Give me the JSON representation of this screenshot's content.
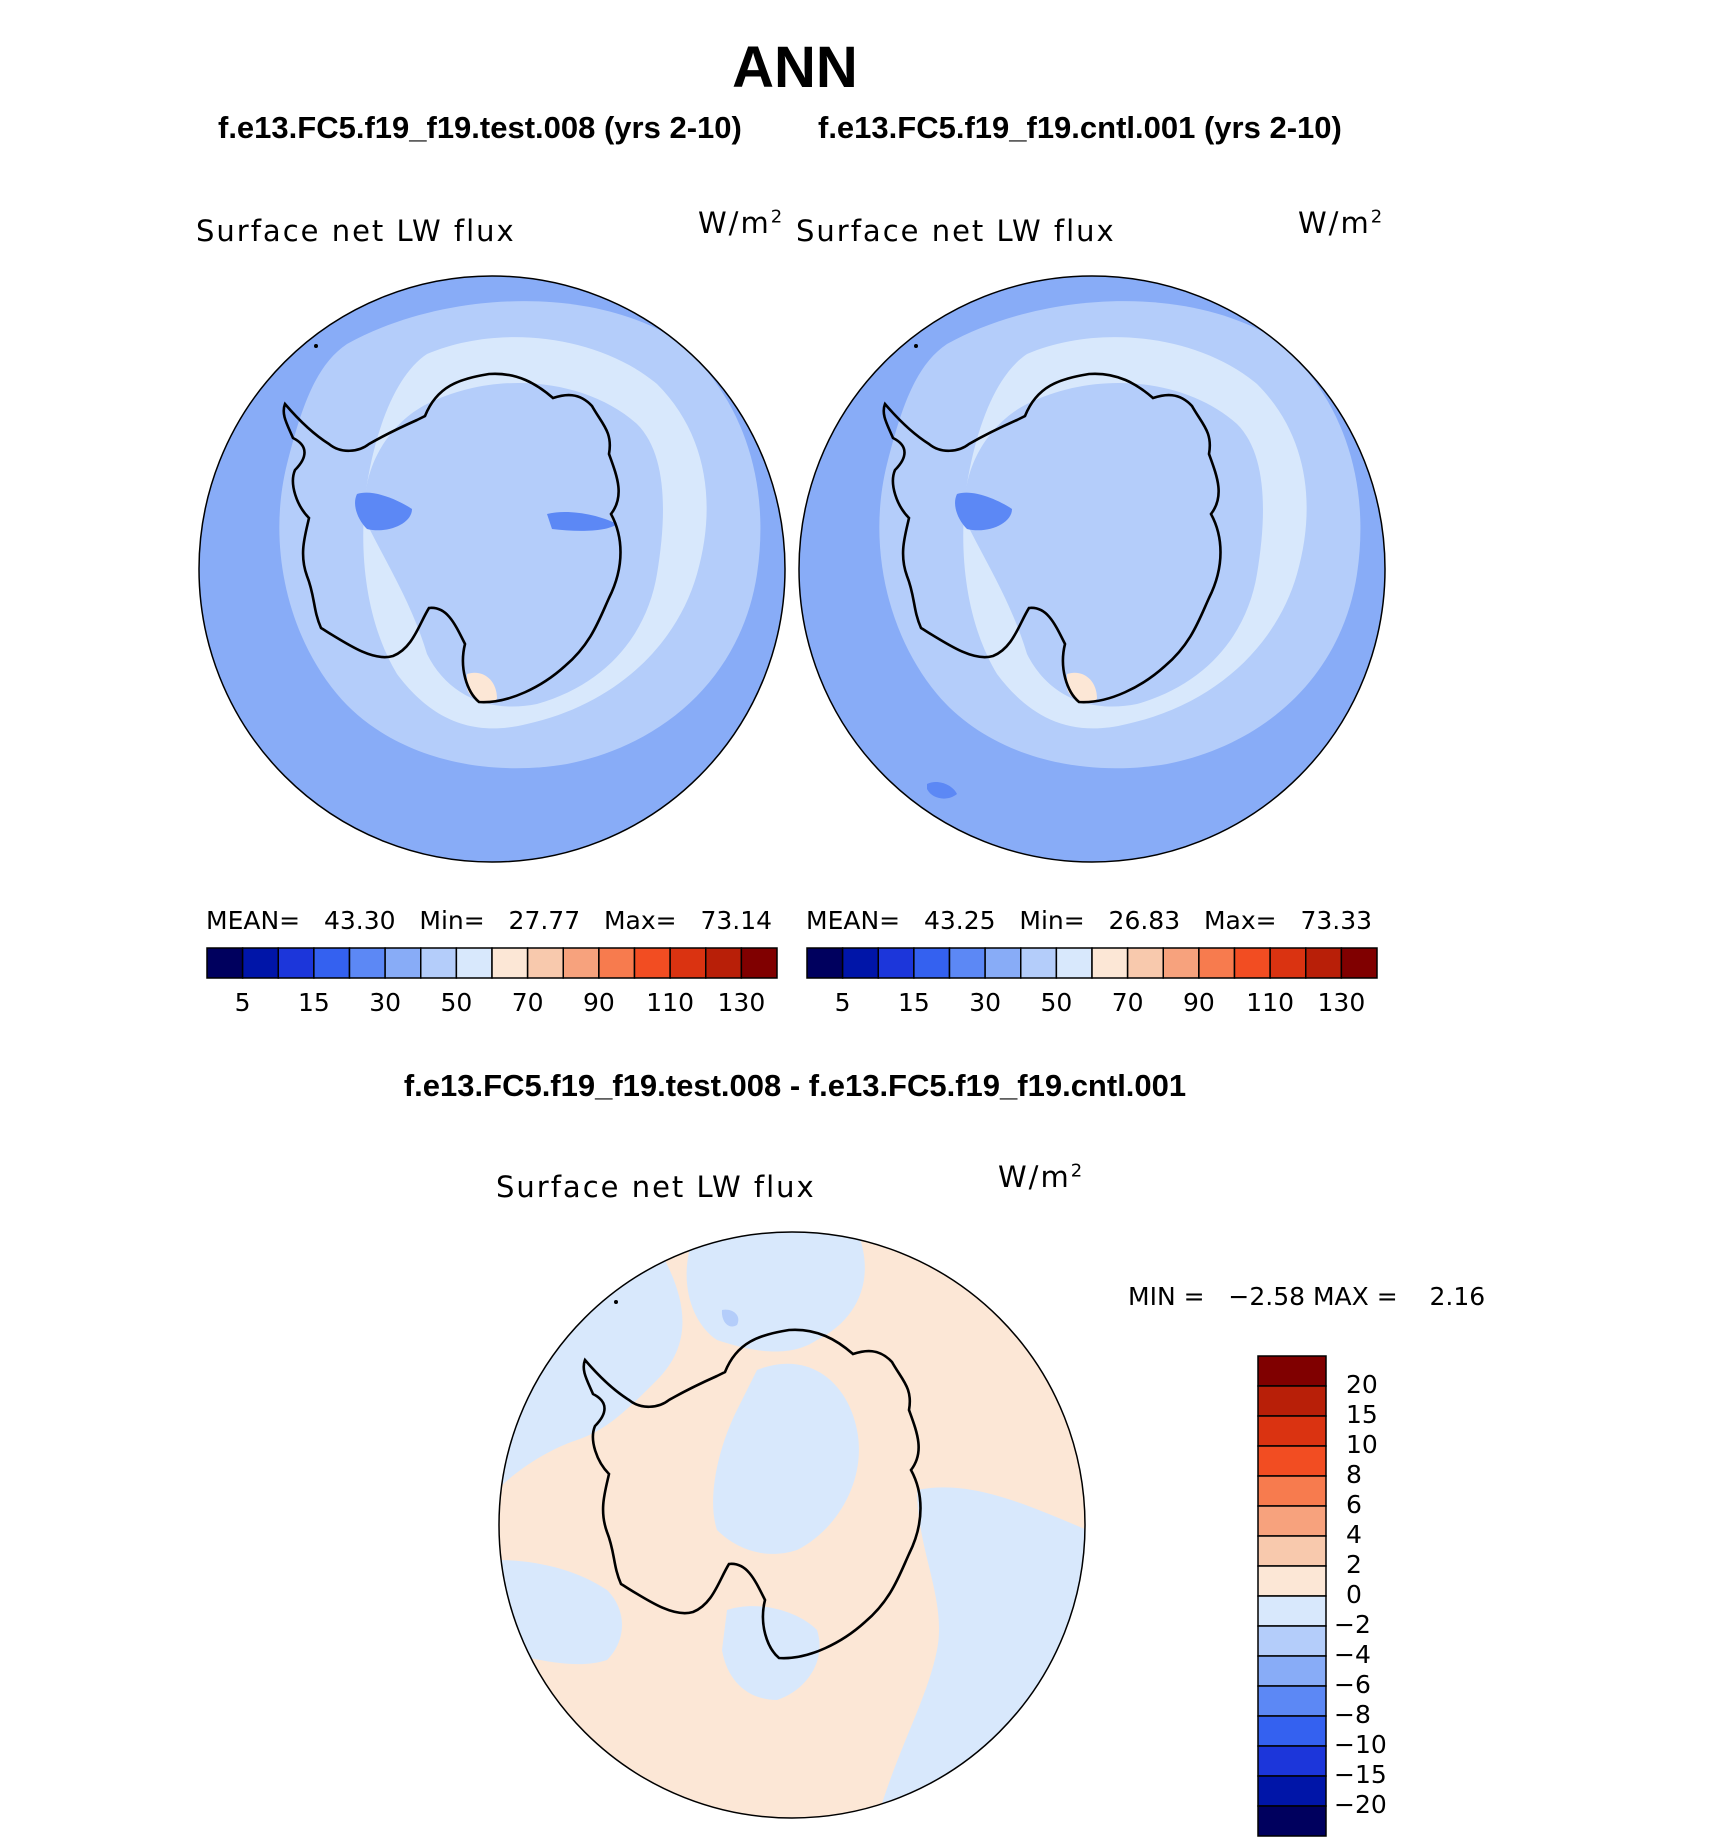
{
  "page": {
    "title": "ANN",
    "case_test": "f.e13.FC5.f19_f19.test.008 (yrs 2-10)",
    "case_cntl": "f.e13.FC5.f19_f19.cntl.001 (yrs 2-10)",
    "diff_title": "f.e13.FC5.f19_f19.test.008 - f.e13.FC5.f19_f19.cntl.001"
  },
  "panels": {
    "test": {
      "variable": "Surface net LW flux",
      "units": "W/m",
      "units_exp": "2",
      "mean_label": "MEAN=",
      "mean": "43.30",
      "min_label": "Min=",
      "min": "27.77",
      "max_label": "Max=",
      "max": "73.14"
    },
    "cntl": {
      "variable": "Surface net LW flux",
      "units": "W/m",
      "units_exp": "2",
      "mean_label": "MEAN=",
      "mean": "43.25",
      "min_label": "Min=",
      "min": "26.83",
      "max_label": "Max=",
      "max": "73.33"
    },
    "diff": {
      "variable": "Surface net LW flux",
      "units": "W/m",
      "units_exp": "2",
      "min_label": "MIN =",
      "min": "−2.58",
      "max_label": "MAX =",
      "max": "2.16"
    }
  },
  "colorbar_abs": {
    "colors": [
      "#00005e",
      "#0015a8",
      "#1c36da",
      "#3461f0",
      "#5c88f5",
      "#88acf7",
      "#b4cdfa",
      "#d8e8fc",
      "#fce7d6",
      "#f8c9ad",
      "#f7a27d",
      "#f77b4e",
      "#f24d22",
      "#da3311",
      "#b81f08",
      "#800000"
    ],
    "tick_labels": [
      "5",
      "15",
      "30",
      "50",
      "70",
      "90",
      "110",
      "130"
    ]
  },
  "colorbar_diff": {
    "colors": [
      "#800000",
      "#b81f08",
      "#da3311",
      "#f24d22",
      "#f77b4e",
      "#f7a27d",
      "#f8c9ad",
      "#fce7d6",
      "#d8e8fc",
      "#b4cdfa",
      "#88acf7",
      "#5c88f5",
      "#3461f0",
      "#1c36da",
      "#0015a8",
      "#00005e"
    ],
    "tick_labels": [
      "20",
      "15",
      "10",
      "8",
      "6",
      "4",
      "2",
      "0",
      "−2",
      "−4",
      "−6",
      "−8",
      "−10",
      "−15",
      "−20"
    ]
  },
  "map_colors": {
    "ocean_outer": "#88acf7",
    "ocean_mid": "#b4cdfa",
    "ice_edge": "#d8e8fc",
    "interior": "#b4cdfa",
    "deep": "#5c88f5",
    "warm": "#fce7d6",
    "coast": "#000000",
    "diff_warm": "#fce7d6",
    "diff_cool": "#d8e8fc",
    "diff_cool2": "#b4cdfa"
  }
}
